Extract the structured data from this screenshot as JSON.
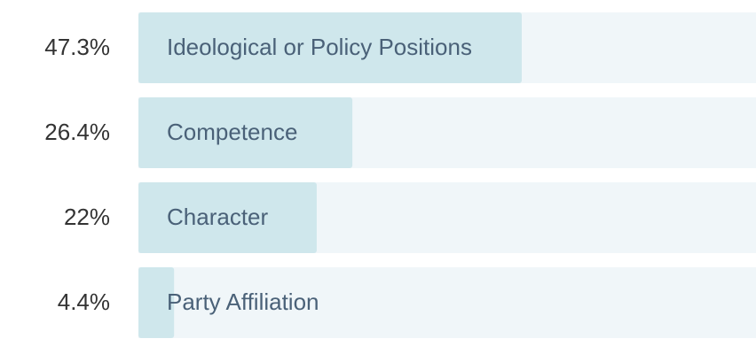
{
  "chart_data": {
    "type": "bar",
    "orientation": "horizontal",
    "categories": [
      "Ideological or Policy Positions",
      "Competence",
      "Character",
      "Party Affiliation"
    ],
    "values": [
      47.3,
      26.4,
      22,
      4.4
    ],
    "value_labels": [
      "47.3%",
      "26.4%",
      "22%",
      "4.4%"
    ],
    "color": "#cfe7ec",
    "track_color": "#f0f6f9"
  }
}
